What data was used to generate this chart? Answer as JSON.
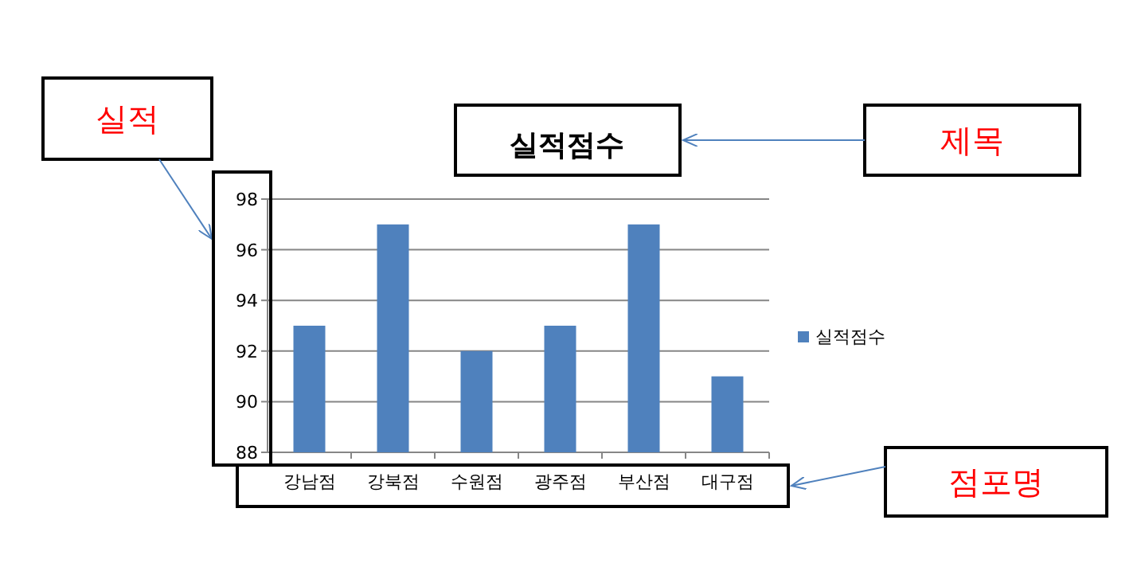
{
  "chart_data": {
    "type": "bar",
    "title": "실적점수",
    "categories": [
      "강남점",
      "강북점",
      "수원점",
      "광주점",
      "부산점",
      "대구점"
    ],
    "series": [
      {
        "name": "실적점수",
        "color": "#4f81bd",
        "values": [
          93,
          97,
          92,
          93,
          97,
          91
        ]
      }
    ],
    "ylim": [
      88,
      98
    ],
    "yticks": [
      88,
      90,
      92,
      94,
      96,
      98
    ],
    "grid": "y",
    "legend": "right",
    "annotations": [
      "실적",
      "제목",
      "점포명"
    ]
  }
}
